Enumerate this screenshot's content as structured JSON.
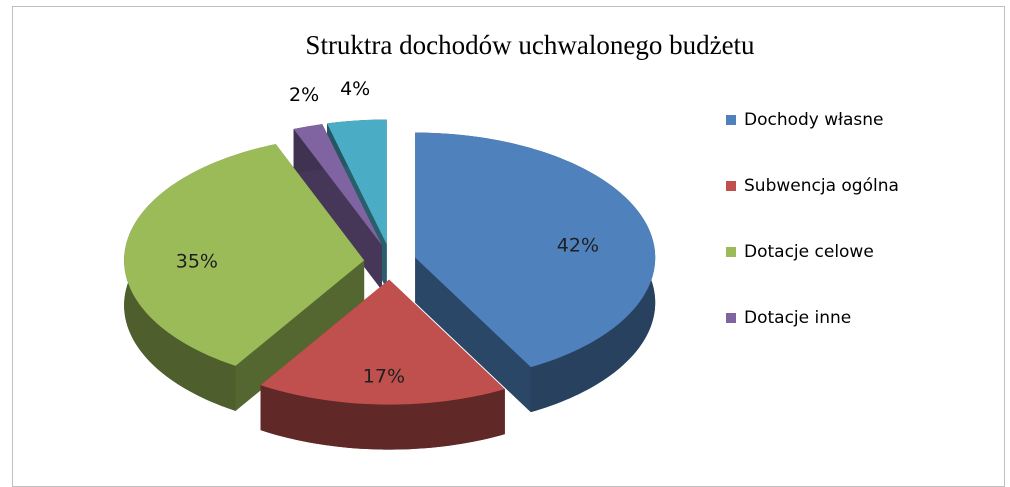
{
  "chart_data": {
    "type": "pie3d",
    "title": "Struktra dochodów uchwalonego budżetu",
    "categories": [
      "Dochody własne",
      "Subwencja ogólna",
      "Dotacje celowe",
      "Dotacje inne",
      null
    ],
    "values": [
      42,
      17,
      35,
      2,
      4
    ],
    "value_labels": [
      "42%",
      "17%",
      "35%",
      "2%",
      "4%"
    ],
    "colors": [
      "#4f81bd",
      "#c0504d",
      "#9bbb59",
      "#8064a2",
      "#4bacc6"
    ],
    "legend": "right"
  }
}
